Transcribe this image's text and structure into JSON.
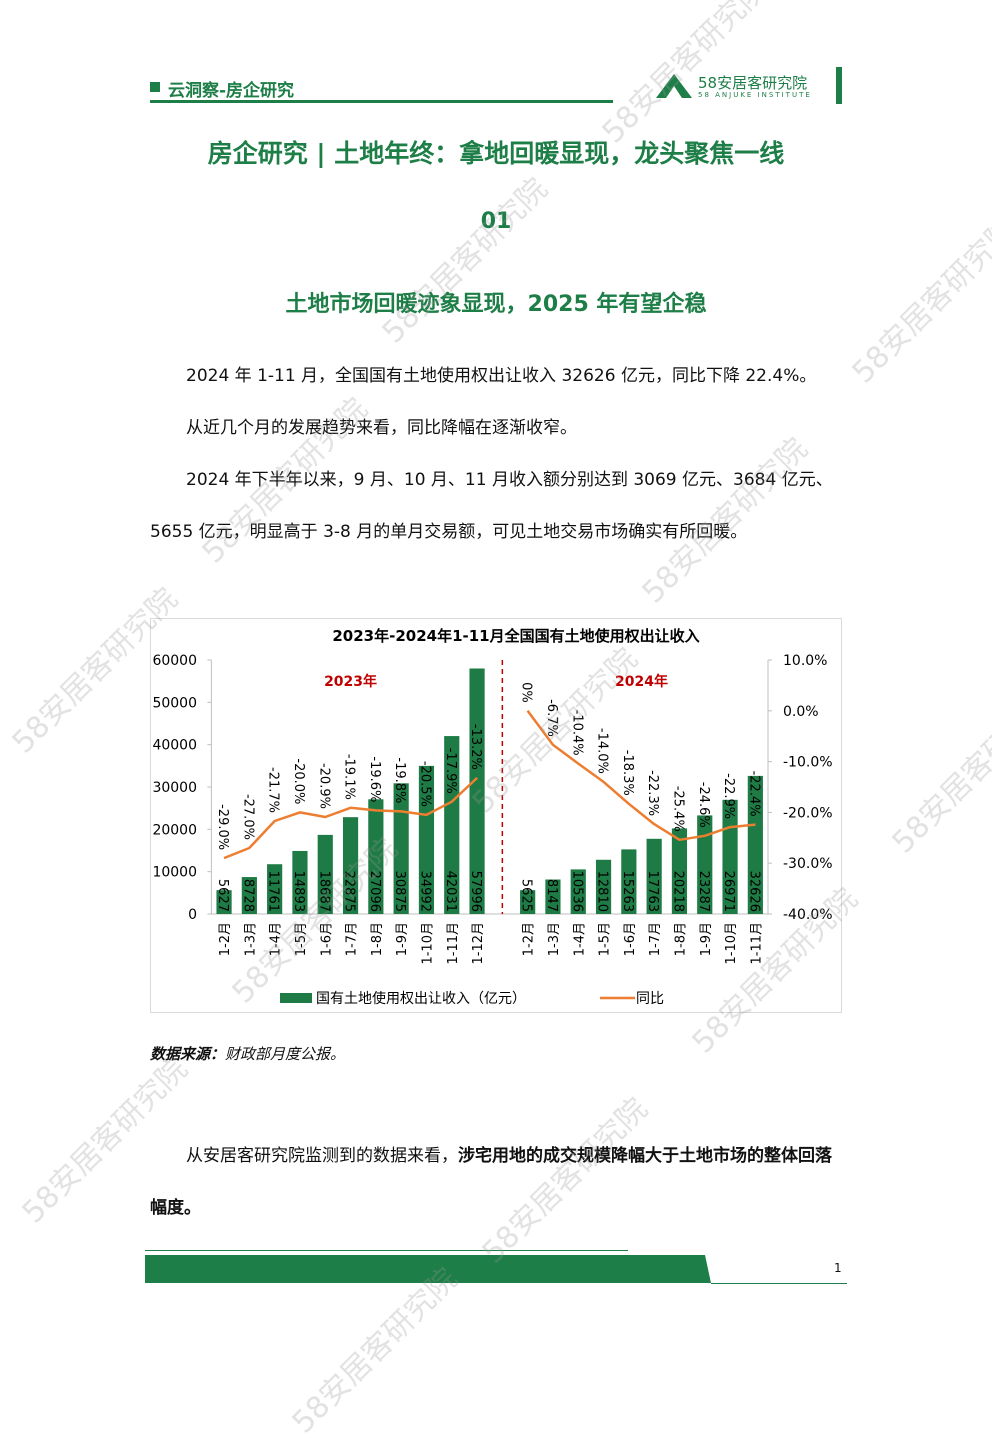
{
  "header": {
    "section": "云洞察-房企研究",
    "logo_name": "58安居客研究院",
    "logo_sub": "58 ANJUKE INSTITUTE"
  },
  "title": "房企研究 | 土地年终：拿地回暖显现，龙头聚焦一线",
  "section_number": "01",
  "section_title": "土地市场回暖迹象显现，2025 年有望企稳",
  "paragraphs": [
    "2024 年 1-11 月，全国国有土地使用权出让收入 32626 亿元，同比下降 22.4%。",
    "从近几个月的发展趋势来看，同比降幅在逐渐收窄。",
    "2024 年下半年以来，9 月、10 月、11 月收入额分别达到 3069 亿元、3684 亿元、5655 亿元，明显高于 3-8 月的单月交易额，可见土地交易市场确实有所回暖。"
  ],
  "chart_data": {
    "type": "bar_line",
    "title": "2023年-2024年1-11月全国国有土地使用权出让收入",
    "categories": [
      "1-2月",
      "1-3月",
      "1-4月",
      "1-5月",
      "1-6月",
      "1-7月",
      "1-8月",
      "1-9月",
      "1-10月",
      "1-11月",
      "1-12月",
      null,
      "1-2月",
      "1-3月",
      "1-4月",
      "1-5月",
      "1-6月",
      "1-7月",
      "1-8月",
      "1-9月",
      "1-10月",
      "1-11月"
    ],
    "series": [
      {
        "name": "国有土地使用权出让收入（亿元）",
        "type": "bar",
        "color": "#1f7b45",
        "values": [
          5627,
          8728,
          11761,
          14893,
          18687,
          22875,
          27096,
          30875,
          34992,
          42031,
          57996,
          null,
          5625,
          8147,
          10536,
          12810,
          15263,
          17763,
          20218,
          23287,
          26971,
          32626
        ]
      },
      {
        "name": "同比",
        "type": "line",
        "axis": "y2",
        "color": "#ed7d31",
        "values": [
          -29.0,
          -27.0,
          -21.7,
          -20.0,
          -20.9,
          -19.1,
          -19.6,
          -19.8,
          -20.5,
          -17.9,
          -13.2,
          null,
          0,
          -6.7,
          -10.4,
          -14.0,
          -18.3,
          -22.3,
          -25.4,
          -24.6,
          -22.9,
          -22.4
        ],
        "value_labels": [
          "-29.0%",
          "-27.0%",
          "-21.7%",
          "-20.0%",
          "-20.9%",
          "-19.1%",
          "-19.6%",
          "-19.8%",
          "-20.5%",
          "-17.9%",
          "-13.2%",
          null,
          "0%",
          "-6.7%",
          "-10.4%",
          "-14.0%",
          "-18.3%",
          "-22.3%",
          "-25.4%",
          "-24.6%",
          "-22.9%",
          "-22.4%"
        ]
      }
    ],
    "ylim": [
      0,
      60000
    ],
    "yticks": [
      0,
      10000,
      20000,
      30000,
      40000,
      50000,
      60000
    ],
    "y2lim": [
      -40,
      10
    ],
    "y2ticks": [
      {
        "value": -40,
        "label": "-40.0%"
      },
      {
        "value": -30,
        "label": "-30.0%"
      },
      {
        "value": -20,
        "label": "-20.0%"
      },
      {
        "value": -10,
        "label": "-10.0%"
      },
      {
        "value": 0,
        "label": "0.0%"
      },
      {
        "value": 10,
        "label": "10.0%"
      }
    ],
    "annotations": [
      "2023年",
      "2024年"
    ],
    "annotation_color": "#c00000",
    "legend": "bottom"
  },
  "source": {
    "label": "数据来源：",
    "text": "财政部月度公报。"
  },
  "closing": {
    "text": "从安居客研究院监测到的数据来看，",
    "bold": "涉宅用地的成交规模降幅大于土地市场的整体回落幅度。"
  },
  "page_number": "1",
  "watermark": "58安居客研究院"
}
